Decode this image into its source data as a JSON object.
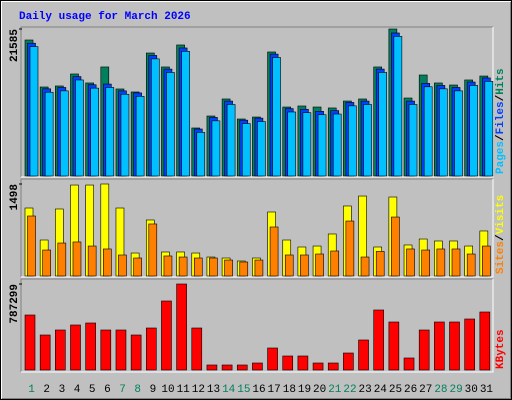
{
  "chart_data": [
    {
      "type": "bar",
      "title": "Daily usage for March 2026",
      "legend_separator": "/",
      "ylim": [
        0,
        21585
      ],
      "yticks": [
        21585
      ],
      "series": [
        {
          "name": "Hits",
          "color": "#00805c",
          "values": [
            19970,
            13070,
            13220,
            14980,
            13660,
            16010,
            12780,
            12340,
            18060,
            16010,
            19240,
            7050,
            8810,
            11310,
            8370,
            8660,
            18210,
            10130,
            10280,
            10130,
            9990,
            11010,
            11310,
            16010,
            21585,
            11450,
            14830,
            13660,
            13360,
            14100,
            14680
          ]
        },
        {
          "name": "Files",
          "color": "#0040ff",
          "values": [
            19500,
            12800,
            13000,
            14600,
            13400,
            13500,
            12500,
            12200,
            17700,
            15700,
            18800,
            6900,
            8600,
            11000,
            8200,
            8500,
            17900,
            9900,
            9800,
            9500,
            9600,
            10800,
            11000,
            15700,
            21000,
            11000,
            13600,
            13300,
            13000,
            13800,
            14400
          ]
        },
        {
          "name": "Pages",
          "color": "#00c0ff",
          "values": [
            19000,
            12300,
            12500,
            14100,
            12900,
            13000,
            12000,
            11700,
            17200,
            15200,
            18300,
            6400,
            8100,
            10500,
            7700,
            8000,
            17400,
            9400,
            9300,
            9000,
            9100,
            10300,
            10500,
            15200,
            20500,
            10500,
            13100,
            12800,
            12500,
            13300,
            13900
          ]
        }
      ]
    },
    {
      "type": "bar",
      "legend_separator": "/",
      "ylim": [
        0,
        1498
      ],
      "yticks": [
        1498
      ],
      "series": [
        {
          "name": "Visits",
          "color": "#ffff00",
          "values": [
            1107,
            586,
            1091,
            1481,
            1481,
            1498,
            1107,
            374,
            912,
            391,
            391,
            374,
            309,
            293,
            244,
            293,
            1042,
            586,
            472,
            488,
            684,
            1140,
            1302,
            472,
            1286,
            505,
            602,
            570,
            570,
            488,
            733
          ]
        },
        {
          "name": "Sites",
          "color": "#ff8000",
          "values": [
            977,
            423,
            537,
            554,
            488,
            440,
            342,
            293,
            847,
            326,
            309,
            293,
            293,
            260,
            228,
            260,
            798,
            342,
            342,
            358,
            407,
            895,
            309,
            400,
            960,
            440,
            423,
            440,
            440,
            358,
            488
          ]
        }
      ]
    },
    {
      "type": "bar",
      "ylim": [
        0,
        787299
      ],
      "yticks": [
        787299
      ],
      "categories": [
        "1",
        "2",
        "3",
        "4",
        "5",
        "6",
        "7",
        "8",
        "9",
        "10",
        "11",
        "12",
        "13",
        "14",
        "15",
        "16",
        "17",
        "18",
        "19",
        "20",
        "21",
        "22",
        "23",
        "24",
        "25",
        "26",
        "27",
        "28",
        "29",
        "30",
        "31"
      ],
      "weekend_days": [
        "1",
        "7",
        "8",
        "14",
        "15",
        "21",
        "22",
        "28",
        "29"
      ],
      "weekend_color": "#00805c",
      "series": [
        {
          "name": "KBytes",
          "color": "#ff0000",
          "values": [
            503500,
            320400,
            366200,
            412000,
            430300,
            366200,
            366200,
            320400,
            384500,
            631700,
            787299,
            384500,
            45800,
            45800,
            45800,
            64100,
            201400,
            128200,
            128200,
            64100,
            64100,
            155600,
            274700,
            549300,
            439400,
            109900,
            366200,
            439400,
            439400,
            466900,
            531000
          ]
        }
      ]
    }
  ]
}
